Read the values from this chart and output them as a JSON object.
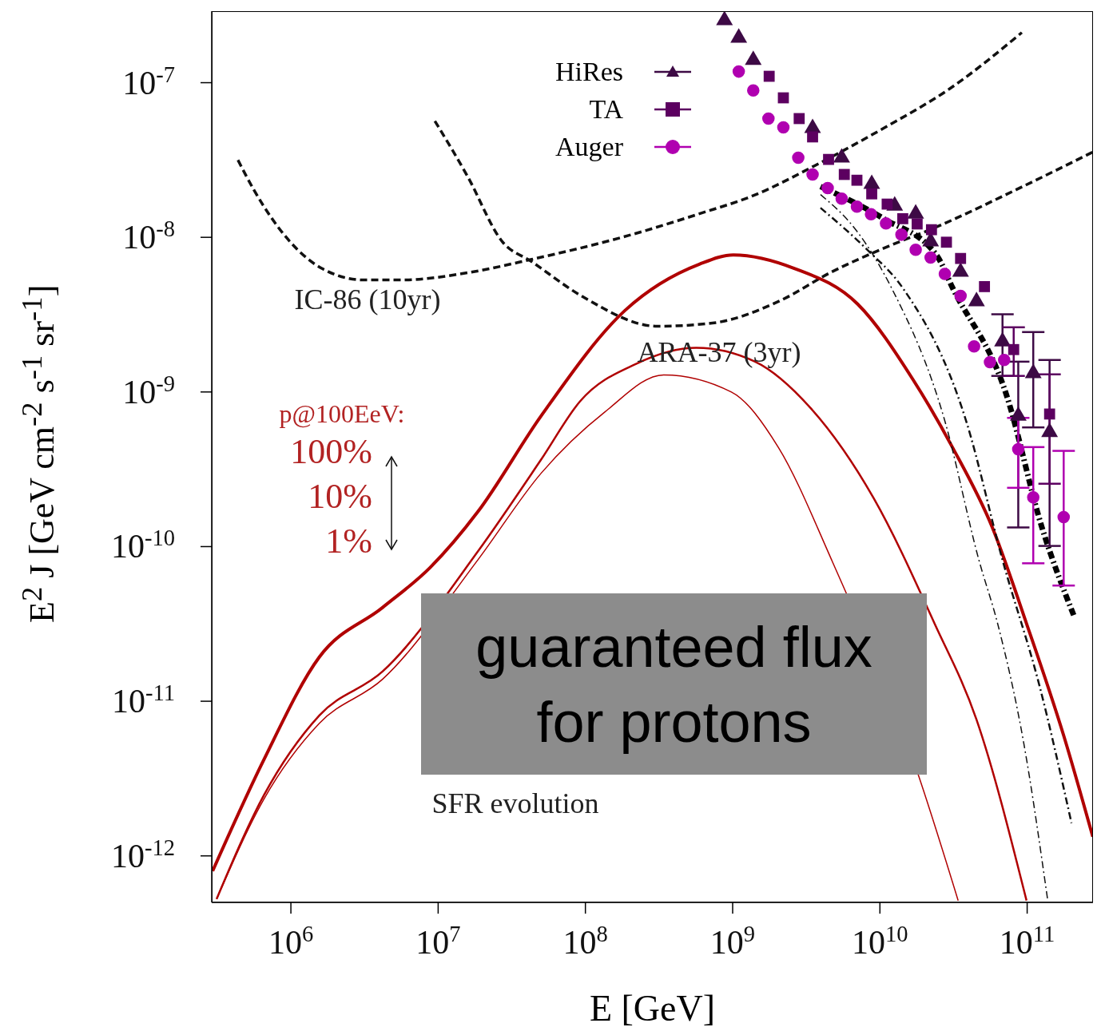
{
  "chart_data": {
    "type": "line",
    "xlabel": "E [GeV]",
    "ylabel": "E$^{2}$ J [GeV cm$^{-2}$ s$^{-1}$ sr$^{-1}$]",
    "log": "xy",
    "legend": "top",
    "xlim": [
      290000.0,
      280000000000.0
    ],
    "ylim": [
      5e-13,
      2.9e-07
    ],
    "xticks": [
      {
        "value": 1000000.0,
        "label": "10$^{6}$"
      },
      {
        "value": 10000000.0,
        "label": "10$^{7}$"
      },
      {
        "value": 100000000.0,
        "label": "10$^{8}$"
      },
      {
        "value": 1000000000.0,
        "label": "10$^{9}$"
      },
      {
        "value": 10000000000.0,
        "label": "10$^{10}$"
      },
      {
        "value": 100000000000.0,
        "label": "10$^{11}$"
      }
    ],
    "yticks": [
      {
        "value": 1e-12,
        "label": "10$^{-12}$"
      },
      {
        "value": 1e-11,
        "label": "10$^{-11}$"
      },
      {
        "value": 1e-10,
        "label": "10$^{-10}$"
      },
      {
        "value": 1e-09,
        "label": "10$^{-9}$"
      },
      {
        "value": 1e-08,
        "label": "10$^{-8}$"
      },
      {
        "value": 1e-07,
        "label": "10$^{-7}$"
      }
    ],
    "annotations": [
      "IC-86 (10yr)",
      "ARA-37 (3yr)",
      "SFR evolution",
      "p@100EeV:",
      "100%",
      "10%",
      "1%",
      "guaranteed flux for protons"
    ],
    "series": [
      {
        "color": "#111111",
        "line_style": "dashed",
        "marker": "none",
        "x": [
          437000.0,
          560000.0,
          1620000.0,
          3130000.0,
          5730000.0,
          15800000.0,
          43100000.0,
          198000000.0,
          594000000.0,
          1360000000.0,
          3950000000.0,
          10600000000.0,
          30100000000.0,
          92000000000.0
        ],
        "values": [
          3.16e-08,
          2.03e-08,
          6.3e-09,
          5.3e-09,
          5.3e-09,
          5.9e-09,
          7.2e-09,
          1.03e-08,
          1.42e-08,
          1.85e-08,
          3.04e-08,
          5.08e-08,
          9.2e-08,
          2.11e-07
        ]
      },
      {
        "color": "#111111",
        "line_style": "dashed",
        "marker": "none",
        "x": [
          9500000.0,
          15800000.0,
          27200000.0,
          43100000.0,
          96000000.0,
          308000000.0,
          730000000.0,
          2050000000.0,
          4700000000.0,
          10600000000.0,
          24400000000.0,
          84000000000.0,
          279000000000.0
        ],
        "values": [
          5.65e-08,
          2.49e-08,
          9.4e-09,
          6.97e-09,
          4.13e-09,
          2.66e-09,
          2.79e-09,
          3.85e-09,
          5.97e-09,
          8.5e-09,
          1.17e-08,
          2.03e-08,
          3.56e-08
        ]
      },
      {
        "color": "#b00000",
        "line_style": "solid",
        "marker": "none",
        "x": [
          294000.0,
          656000.0,
          1560000.0,
          4200000.0,
          8800000.0,
          18600000.0,
          50000000.0,
          186000000.0,
          594000000.0,
          1010000000.0,
          2620000000.0,
          7060000000.0,
          16800000000.0,
          31200000000.0,
          58000000000.0,
          99000000000.0,
          177000000000.0,
          279000000000.0
        ],
        "values": [
          7.98e-13,
          4.2e-12,
          1.93e-11,
          4.04e-11,
          7.3e-11,
          1.68e-10,
          7e-10,
          3.37e-09,
          6.7e-09,
          7.7e-09,
          6.3e-09,
          3.7e-09,
          1.2e-09,
          4.36e-10,
          1.33e-10,
          3.18e-11,
          6e-12,
          1.33e-12
        ]
      },
      {
        "color": "#b00000",
        "line_style": "solid",
        "marker": "none",
        "x": [
          313000.0,
          656000.0,
          1560000.0,
          4200000.0,
          8800000.0,
          18600000.0,
          50000000.0,
          92000000.0,
          221000000.0,
          566000000.0,
          1420000000.0,
          3370000000.0,
          9060000000.0,
          23500000000.0,
          45300000000.0,
          99000000000.0
        ],
        "values": [
          5.26e-13,
          2.47e-12,
          8.1e-12,
          1.56e-11,
          null,
          9.3e-11,
          3.65e-10,
          8.7e-10,
          1.52e-09,
          1.93e-09,
          1.57e-09,
          7.9e-10,
          2.06e-10,
          3.18e-11,
          7.6e-12,
          5.14e-13
        ]
      },
      {
        "color": "#b00000",
        "line_style": "solid",
        "marker": "none",
        "x": [
          313000.0,
          656000.0,
          1560000.0,
          4200000.0,
          8800000.0,
          18600000.0,
          50000000.0,
          135000000.0,
          340000000.0,
          980000000.0,
          2050000000.0,
          4700000000.0,
          18300000000.0,
          34000000000.0
        ],
        "values": [
          5.26e-13,
          2.33e-12,
          7.2e-12,
          1.39e-11,
          null,
          8.2e-11,
          2.98e-10,
          7.4e-10,
          1.29e-09,
          1e-09,
          4.36e-10,
          8.2e-11,
          3.3e-12,
          5.14e-13
        ]
      },
      {
        "color": "#111111",
        "line_style": "dotted",
        "marker": "none",
        "x": [
          3950000000.0,
          7060000000.0,
          12000000000.0,
          27600000000.0,
          47000000000.0,
          63000000000.0,
          95000000000.0,
          138000000000.0
        ],
        "values": [
          1.89e-08,
          1.08e-08,
          4.7e-09,
          6.5e-10,
          8.2e-11,
          3.18e-11,
          5.3e-12,
          5.14e-13
        ]
      },
      {
        "color": "#111111",
        "line_style": "dotted",
        "marker": "none",
        "x": [
          3950000000.0,
          8000000000.0,
          14300000000.0,
          38500000000.0,
          68000000000.0,
          122000000000.0,
          200000000000.0
        ],
        "values": [
          1.55e-08,
          8.5e-09,
          4.7e-09,
          6.5e-10,
          8.2e-11,
          1.23e-11,
          1.63e-12
        ]
      },
      {
        "color": "#000000",
        "line_style": "dotted",
        "marker": "none",
        "x": [
          3950000000.0,
          10600000000.0,
          24400000000.0,
          31200000000.0,
          72000000000.0,
          126000000000.0,
          207000000000.0
        ],
        "values": [
          2.13e-08,
          1.32e-08,
          7.6e-09,
          4.7e-09,
          9.7e-10,
          1.33e-10,
          3.6e-11
        ]
      },
      {
        "type": "scatter",
        "name": "HiRes",
        "color": "#3d0a45",
        "marker": "triangle",
        "x": [
          880000000.0,
          1100000000.0,
          1380000000.0,
          3490000000.0,
          5500000000.0,
          8800000000.0,
          12600000000.0,
          17500000000.0,
          22100000000.0,
          35300000000.0,
          45300000000.0,
          68000000000.0,
          87000000000.0,
          110000000000.0,
          142000000000.0
        ],
        "values": [
          2.53e-07,
          1.95e-07,
          1.4e-07,
          5.08e-08,
          3.27e-08,
          2.21e-08,
          1.6e-08,
          1.42e-08,
          9.4e-09,
          5.97e-09,
          3.85e-09,
          2.12e-09,
          7e-10,
          1.32e-09,
          5.5e-10
        ],
        "errors": [
          null,
          null,
          null,
          null,
          null,
          null,
          null,
          null,
          null,
          null,
          null,
          [
            1.27e-09,
            3.18e-09
          ],
          [
            1.33e-10,
            1.57e-09
          ],
          [
            5.9e-10,
            2.44e-09
          ],
          [
            1.01e-10,
            1.61e-09
          ]
        ]
      },
      {
        "type": "scatter",
        "name": "TA",
        "color": "#5c0060",
        "marker": "square",
        "x": [
          1770000000.0,
          2210000000.0,
          2830000000.0,
          3490000000.0,
          4480000000.0,
          5730000000.0,
          6980000000.0,
          8800000000.0,
          11200000000.0,
          14300000000.0,
          17900000000.0,
          22400000000.0,
          28300000000.0,
          35300000000.0,
          51300000000.0,
          81000000000.0,
          142000000000.0
        ],
        "values": [
          1.1e-07,
          7.98e-08,
          5.86e-08,
          4.46e-08,
          3.19e-08,
          2.55e-08,
          2.34e-08,
          1.91e-08,
          1.64e-08,
          1.32e-08,
          1.22e-08,
          1.12e-08,
          9.3e-09,
          7.3e-09,
          4.8e-09,
          1.88e-09,
          7.2e-10
        ],
        "errors": [
          null,
          null,
          null,
          null,
          null,
          null,
          null,
          null,
          null,
          null,
          null,
          null,
          null,
          null,
          null,
          [
            1.27e-09,
            2.62e-09
          ],
          [
            2.55e-10,
            1.3e-09
          ]
        ]
      },
      {
        "type": "scatter",
        "name": "Auger",
        "color": "#b000b0",
        "marker": "circle",
        "x": [
          1100000000.0,
          1380000000.0,
          1750000000.0,
          2210000000.0,
          2790000000.0,
          3490000000.0,
          4420000000.0,
          5500000000.0,
          6980000000.0,
          8700000000.0,
          11000000000.0,
          14000000000.0,
          17500000000.0,
          22100000000.0,
          27600000000.0,
          35300000000.0,
          43600000000.0,
          55900000000.0,
          69800000000.0,
          87000000000.0,
          110000000000.0,
          177000000000.0
        ],
        "values": [
          1.18e-07,
          8.9e-08,
          5.86e-08,
          5.14e-08,
          3.27e-08,
          2.55e-08,
          2.08e-08,
          1.78e-08,
          1.58e-08,
          1.41e-08,
          1.23e-08,
          1.04e-08,
          8.3e-09,
          7.4e-09,
          5.8e-09,
          4.18e-09,
          1.97e-09,
          1.56e-09,
          1.61e-09,
          4.26e-10,
          2.08e-10,
          1.55e-10
        ],
        "errors": [
          null,
          null,
          null,
          null,
          null,
          null,
          null,
          null,
          null,
          null,
          null,
          null,
          null,
          null,
          null,
          null,
          null,
          null,
          null,
          [
            2.4e-10,
            6.8e-10
          ],
          [
            7.8e-11,
            4.4e-10
          ],
          [
            5.6e-11,
            4.16e-10
          ]
        ]
      }
    ]
  }
}
